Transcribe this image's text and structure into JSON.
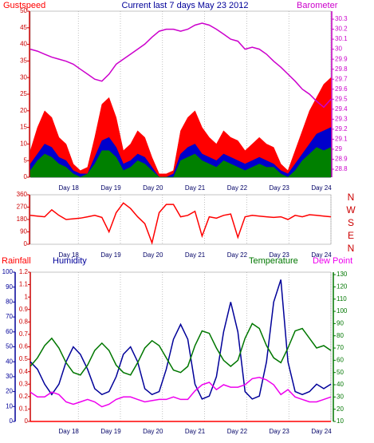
{
  "chart_data": [
    {
      "type": "area",
      "title": "Current last 7 days May 23 2012",
      "xtick_labels": [
        "Day 18",
        "Day 19",
        "Day 20",
        "Day 21",
        "Day 22",
        "Day 23",
        "Day 24"
      ],
      "ylim": [
        0,
        50
      ],
      "yticks": [
        0,
        5,
        10,
        15,
        20,
        25,
        30,
        35,
        40,
        45,
        50
      ],
      "y2lim": [
        28.72,
        30.38
      ],
      "y2ticks": [
        28.8,
        28.9,
        29,
        29.1,
        29.2,
        29.3,
        29.4,
        29.5,
        29.6,
        29.7,
        29.8,
        29.9,
        30,
        30.1,
        30.2,
        30.3
      ],
      "series": [
        {
          "name": "Gustspeed",
          "color": "#ff0000",
          "values": [
            8,
            15,
            20,
            18,
            12,
            10,
            4,
            2,
            3,
            12,
            22,
            24,
            18,
            8,
            10,
            14,
            12,
            6,
            1,
            1,
            2,
            14,
            18,
            20,
            15,
            12,
            10,
            14,
            12,
            11,
            8,
            10,
            12,
            10,
            9,
            4,
            2,
            8,
            14,
            20,
            24,
            28,
            30
          ]
        },
        {
          "color": "#0000cc",
          "values": [
            4,
            7,
            10,
            9,
            6,
            5,
            2,
            1,
            1,
            6,
            11,
            12,
            9,
            4,
            5,
            7,
            6,
            3,
            0,
            0,
            1,
            7,
            9,
            10,
            7,
            6,
            5,
            7,
            6,
            5,
            4,
            5,
            6,
            5,
            4,
            2,
            1,
            4,
            7,
            10,
            13,
            14,
            15
          ]
        },
        {
          "color": "#008000",
          "values": [
            2,
            5,
            7,
            6,
            4,
            3,
            1,
            0,
            1,
            4,
            8,
            8,
            6,
            2,
            3,
            5,
            4,
            2,
            0,
            0,
            0,
            5,
            6,
            7,
            5,
            4,
            3,
            5,
            4,
            3,
            2,
            3,
            4,
            3,
            3,
            1,
            0,
            2,
            5,
            7,
            9,
            8,
            9
          ]
        },
        {
          "name": "Barometer",
          "color": "#cc00cc",
          "axis": "y2",
          "values": [
            30.0,
            29.98,
            29.95,
            29.92,
            29.9,
            29.88,
            29.85,
            29.8,
            29.75,
            29.7,
            29.68,
            29.75,
            29.85,
            29.9,
            29.95,
            30.0,
            30.05,
            30.12,
            30.18,
            30.2,
            30.2,
            30.18,
            30.2,
            30.24,
            30.26,
            30.24,
            30.2,
            30.15,
            30.1,
            30.08,
            30.0,
            30.02,
            30.0,
            29.95,
            29.88,
            29.82,
            29.75,
            29.68,
            29.6,
            29.55,
            29.48,
            29.42,
            29.5
          ]
        }
      ]
    },
    {
      "type": "line",
      "xtick_labels": [
        "Day 18",
        "Day 19",
        "Day 20",
        "Day 21",
        "Day 22",
        "Day 23",
        "Day 24"
      ],
      "ylim": [
        0,
        360
      ],
      "yticks": [
        0,
        90,
        180,
        270,
        360
      ],
      "compass_labels": [
        "N",
        "W",
        "S",
        "E",
        "N"
      ],
      "series": [
        {
          "color": "#ff0000",
          "values": [
            210,
            205,
            200,
            250,
            210,
            180,
            185,
            190,
            200,
            210,
            195,
            90,
            230,
            300,
            260,
            200,
            150,
            10,
            230,
            290,
            290,
            200,
            210,
            240,
            60,
            200,
            190,
            210,
            220,
            50,
            200,
            210,
            205,
            200,
            195,
            200,
            180,
            210,
            200,
            215,
            210,
            205,
            200
          ]
        }
      ]
    },
    {
      "type": "line",
      "xtick_labels": [
        "Day 18",
        "Day 19",
        "Day 20",
        "Day 21",
        "Day 22",
        "Day 23",
        "Day 24"
      ],
      "ylim": [
        0,
        100
      ],
      "yticks": [
        0,
        10,
        20,
        30,
        40,
        50,
        60,
        70,
        80,
        90,
        100
      ],
      "y3lim": [
        0,
        1.2
      ],
      "y3ticks": [
        0,
        0.1,
        0.2,
        0.3,
        0.4,
        0.5,
        0.6,
        0.7,
        0.8,
        0.9,
        1,
        1.1,
        1.2
      ],
      "y2lim": [
        10,
        132
      ],
      "y2ticks": [
        10,
        20,
        30,
        40,
        50,
        60,
        70,
        80,
        90,
        100,
        110,
        120,
        130
      ],
      "series": [
        {
          "name": "Rainfall",
          "color": "#ff0000",
          "axis": "y3",
          "values": [
            0,
            0,
            0,
            0,
            0,
            0,
            0,
            0,
            0,
            0,
            0,
            0,
            0,
            0,
            0,
            0,
            0,
            0,
            0,
            0,
            0,
            0,
            0,
            0,
            0,
            0,
            0,
            0,
            0,
            0,
            0,
            0,
            0,
            0,
            0,
            0,
            0,
            0,
            0,
            0,
            0,
            0,
            0
          ]
        },
        {
          "name": "Humidity",
          "color": "#000099",
          "values": [
            40,
            35,
            25,
            18,
            25,
            40,
            50,
            45,
            35,
            22,
            18,
            20,
            30,
            45,
            50,
            40,
            22,
            18,
            20,
            35,
            55,
            65,
            55,
            25,
            15,
            17,
            30,
            60,
            80,
            60,
            20,
            15,
            17,
            40,
            80,
            95,
            40,
            20,
            18,
            20,
            25,
            22,
            25
          ]
        },
        {
          "name": "Temperature",
          "color": "#007700",
          "axis": "y2",
          "values": [
            55,
            62,
            72,
            78,
            70,
            58,
            50,
            48,
            56,
            68,
            74,
            68,
            56,
            50,
            48,
            58,
            70,
            76,
            72,
            62,
            52,
            50,
            55,
            72,
            84,
            82,
            70,
            60,
            55,
            60,
            78,
            90,
            86,
            72,
            62,
            58,
            70,
            84,
            86,
            78,
            70,
            72,
            68
          ]
        },
        {
          "name": "Dew Point",
          "color": "#ee00ee",
          "axis": "y2",
          "values": [
            34,
            30,
            30,
            34,
            32,
            26,
            24,
            26,
            28,
            26,
            22,
            24,
            28,
            30,
            30,
            28,
            26,
            27,
            28,
            28,
            30,
            28,
            28,
            35,
            40,
            42,
            36,
            40,
            38,
            38,
            40,
            45,
            46,
            44,
            40,
            32,
            36,
            30,
            28,
            26,
            26,
            28,
            30
          ]
        }
      ]
    }
  ]
}
